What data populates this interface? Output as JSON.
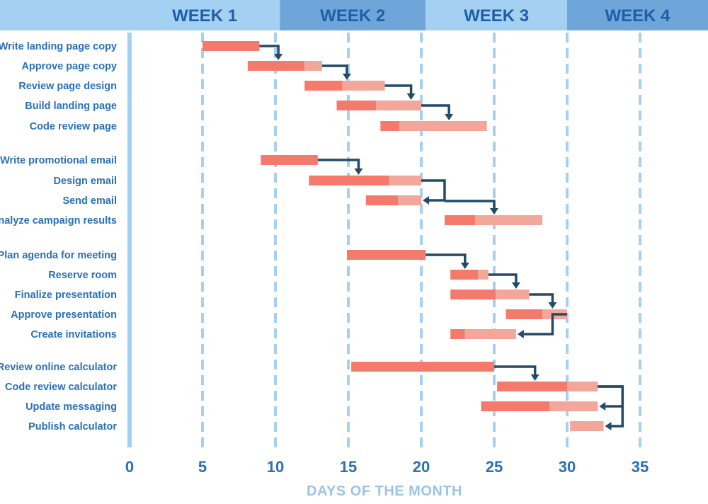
{
  "chart_data": {
    "type": "gantt",
    "xlabel": "DAYS OF THE MONTH",
    "xlim": [
      0,
      35
    ],
    "xticks": [
      0,
      5,
      10,
      15,
      20,
      25,
      30,
      35
    ],
    "weeks": [
      {
        "label": "WEEK 1",
        "start": 0,
        "end": 10.3
      },
      {
        "label": "WEEK 2",
        "start": 10.3,
        "end": 20.3
      },
      {
        "label": "WEEK 3",
        "start": 20.3,
        "end": 30
      },
      {
        "label": "WEEK 4",
        "start": 30,
        "end": 40
      }
    ],
    "groups": [
      {
        "tasks": [
          {
            "name": "Write landing page copy",
            "start": 5.0,
            "mid": 8.9,
            "end": 8.9
          },
          {
            "name": "Approve page copy",
            "start": 8.1,
            "mid": 12.0,
            "end": 13.2
          },
          {
            "name": "Review page design",
            "start": 12.0,
            "mid": 14.6,
            "end": 17.5
          },
          {
            "name": "Build landing page",
            "start": 14.2,
            "mid": 16.9,
            "end": 20.0
          },
          {
            "name": "Code review page",
            "start": 17.2,
            "mid": 18.5,
            "end": 24.5
          }
        ]
      },
      {
        "tasks": [
          {
            "name": "Write promotional email",
            "start": 9.0,
            "mid": 12.9,
            "end": 12.9
          },
          {
            "name": "Design email",
            "start": 12.3,
            "mid": 17.8,
            "end": 20.0
          },
          {
            "name": "Send email",
            "start": 16.2,
            "mid": 18.4,
            "end": 20.0
          },
          {
            "name": "Analyze campaign results",
            "start": 21.6,
            "mid": 23.7,
            "end": 28.3
          }
        ]
      },
      {
        "tasks": [
          {
            "name": "Plan agenda for meeting",
            "start": 14.9,
            "mid": 20.3,
            "end": 20.3
          },
          {
            "name": "Reserve room",
            "start": 22.0,
            "mid": 23.9,
            "end": 24.6
          },
          {
            "name": "Finalize presentation",
            "start": 22.0,
            "mid": 25.1,
            "end": 27.4
          },
          {
            "name": "Approve presentation",
            "start": 25.8,
            "mid": 28.3,
            "end": 30.0
          },
          {
            "name": "Create invitations",
            "start": 22.0,
            "mid": 23.0,
            "end": 26.5
          }
        ]
      },
      {
        "tasks": [
          {
            "name": "Review online calculator",
            "start": 15.2,
            "mid": 25.0,
            "end": 25.0
          },
          {
            "name": "Code review calculator",
            "start": 25.2,
            "mid": 30.0,
            "end": 32.1
          },
          {
            "name": "Update messaging",
            "start": 24.1,
            "mid": 28.8,
            "end": 32.1
          },
          {
            "name": "Publish calculator",
            "start": 30.2,
            "mid": 30.2,
            "end": 32.5
          }
        ]
      }
    ],
    "dependencies": [
      {
        "from": "Write landing page copy",
        "to": "Approve page copy",
        "x": 10.2
      },
      {
        "from": "Approve page copy",
        "to": "Review page design",
        "x": 14.9
      },
      {
        "from": "Review page design",
        "to": "Build landing page",
        "x": 19.3
      },
      {
        "from": "Build landing page",
        "to": "Code review page",
        "x": 21.9
      },
      {
        "from": "Write promotional email",
        "to": "Design email",
        "x": 15.7
      },
      {
        "from": "Design email",
        "to": "Send email",
        "x": 21.6,
        "elbow": "back"
      },
      {
        "from": "Design email",
        "to": "Analyze campaign results",
        "x": 25.0,
        "elbow": "forward"
      },
      {
        "from": "Plan agenda for meeting",
        "to": "Reserve room",
        "x": 23.0
      },
      {
        "from": "Reserve room",
        "to": "Finalize presentation",
        "x": 26.5
      },
      {
        "from": "Finalize presentation",
        "to": "Approve presentation",
        "x": 29.0
      },
      {
        "from": "Approve presentation",
        "to": "Create invitations",
        "x": 29.0,
        "elbow": "back"
      },
      {
        "from": "Review online calculator",
        "to": "Code review calculator",
        "x": 27.8
      },
      {
        "from": "Code review calculator",
        "to": "Update messaging",
        "x": 33.8,
        "elbow": "back"
      },
      {
        "from": "Code review calculator",
        "to": "Publish calculator",
        "x": 33.8,
        "elbow": "back"
      }
    ],
    "colors": {
      "done": "#f47a6b",
      "remaining": "#f3a79a",
      "week_light": "#a4d0f2",
      "week_dark": "#6fa6d9",
      "week_text": "#1f5ea8",
      "label_text": "#2a70b8",
      "grid": "#a4d0f2",
      "arrow": "#234b68",
      "axis_title": "#9cc3e6"
    }
  }
}
